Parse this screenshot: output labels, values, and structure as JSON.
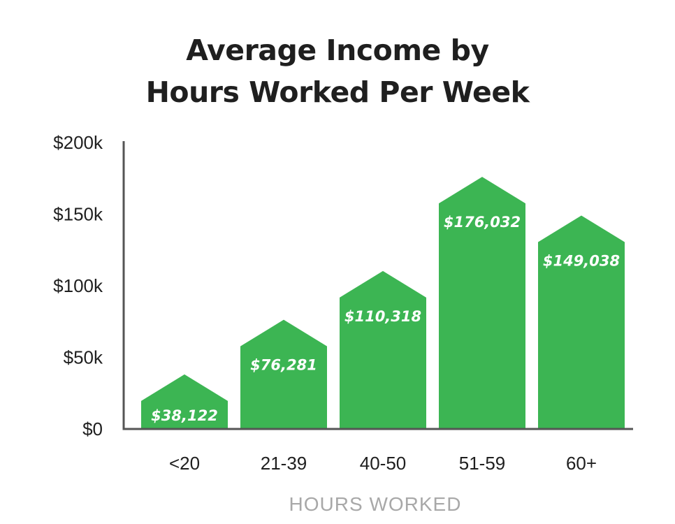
{
  "title_line1": "Average Income by",
  "title_line2": "Hours Worked Per Week",
  "colors": {
    "bar": "#3cb553",
    "axis": "#555555",
    "text": "#1f1f1f",
    "xlabel": "#a8a8a8"
  },
  "chart_data": {
    "type": "bar",
    "title": "Average Income by Hours Worked Per Week",
    "xlabel": "HOURS WORKED",
    "ylabel": "",
    "categories": [
      "<20",
      "21-39",
      "40-50",
      "51-59",
      "60+"
    ],
    "values": [
      38122,
      76281,
      110318,
      176032,
      149038
    ],
    "value_labels": [
      "$38,122",
      "$76,281",
      "$110,318",
      "$176,032",
      "$149,038"
    ],
    "ylim": [
      0,
      200000
    ],
    "yticks": [
      0,
      50000,
      100000,
      150000,
      200000
    ],
    "ytick_labels": [
      "$0",
      "$50k",
      "$100k",
      "$150k",
      "$200k"
    ],
    "grid": false,
    "bar_style": "house-shaped (pointed top)"
  }
}
